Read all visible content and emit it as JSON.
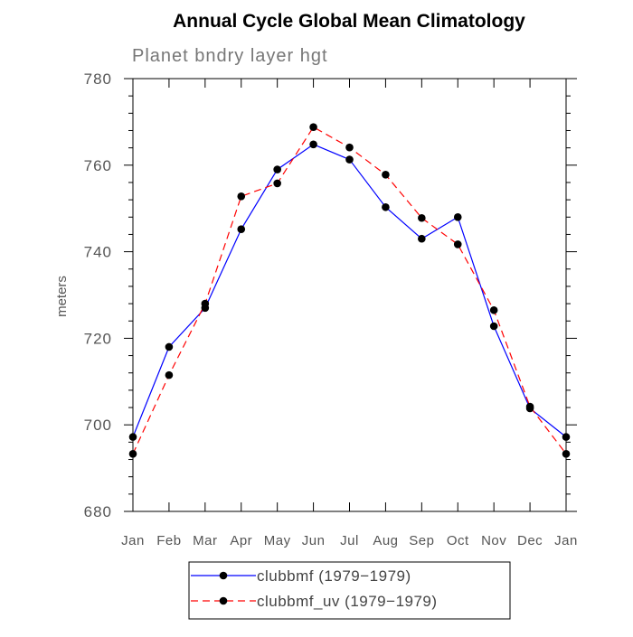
{
  "chart_data": {
    "type": "line",
    "title": "Annual Cycle Global Mean Climatology",
    "subtitle": "Planet bndry layer hgt",
    "xlabel": "",
    "ylabel": "meters",
    "categories": [
      "Jan",
      "Feb",
      "Mar",
      "Apr",
      "May",
      "Jun",
      "Jul",
      "Aug",
      "Sep",
      "Oct",
      "Nov",
      "Dec",
      "Jan"
    ],
    "ylim": [
      680,
      780
    ],
    "yticks": [
      680,
      700,
      720,
      740,
      760,
      780
    ],
    "grid": false,
    "legend_position": "bottom",
    "series": [
      {
        "name": "clubbmf (1979−1979)",
        "color": "#0000ff",
        "style": "solid",
        "values": [
          697.2,
          718,
          727,
          745.2,
          759,
          764.8,
          761.3,
          750.3,
          743,
          748,
          722.8,
          703.8,
          697.2
        ]
      },
      {
        "name": "clubbmf_uv (1979−1979)",
        "color": "#ff0000",
        "style": "dashed",
        "values": [
          693.3,
          711.5,
          728,
          752.8,
          755.8,
          768.8,
          764.1,
          757.8,
          747.8,
          741.7,
          726.5,
          704.2,
          693.3
        ]
      }
    ]
  }
}
